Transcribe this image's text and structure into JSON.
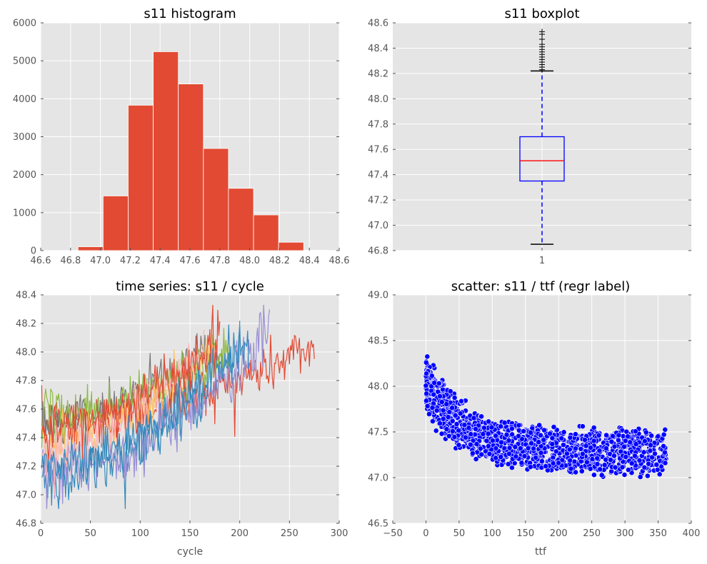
{
  "chart_data": [
    {
      "type": "bar",
      "title": "s11 histogram",
      "xlabel": "",
      "ylabel": "",
      "xlim": [
        46.6,
        48.6
      ],
      "ylim": [
        0,
        6000
      ],
      "xticks": [
        "46.6",
        "46.8",
        "47.0",
        "47.2",
        "47.4",
        "47.6",
        "47.8",
        "48.0",
        "48.2",
        "48.4",
        "48.6"
      ],
      "yticks": [
        "0",
        "1000",
        "2000",
        "3000",
        "4000",
        "5000",
        "6000"
      ],
      "bin_edges": [
        46.85,
        47.018,
        47.186,
        47.354,
        47.522,
        47.69,
        47.858,
        48.026,
        48.194,
        48.362,
        48.53
      ],
      "counts": [
        100,
        1440,
        3830,
        5240,
        4390,
        2690,
        1640,
        940,
        220,
        10
      ],
      "bar_color": "#E24A33",
      "grid": true
    },
    {
      "type": "box",
      "title": "s11 boxplot",
      "xticks": [
        "1"
      ],
      "ylim": [
        46.8,
        48.6
      ],
      "yticks": [
        "46.8",
        "47.0",
        "47.2",
        "47.4",
        "47.6",
        "47.8",
        "48.0",
        "48.2",
        "48.4",
        "48.6"
      ],
      "whisker_low": 46.85,
      "q1": 47.35,
      "median": 47.51,
      "q3": 47.7,
      "whisker_high": 48.22,
      "fliers": [
        48.23,
        48.25,
        48.27,
        48.29,
        48.31,
        48.33,
        48.35,
        48.37,
        48.39,
        48.41,
        48.43,
        48.47,
        48.51,
        48.53
      ],
      "grid": true
    },
    {
      "type": "line",
      "title": "time series: s11 / cycle",
      "xlabel": "cycle",
      "ylabel": "",
      "xlim": [
        0,
        300
      ],
      "ylim": [
        46.8,
        48.4
      ],
      "xticks": [
        "0",
        "50",
        "100",
        "150",
        "200",
        "250",
        "300"
      ],
      "yticks": [
        "46.8",
        "47.0",
        "47.2",
        "47.4",
        "47.6",
        "47.8",
        "48.0",
        "48.2",
        "48.4"
      ],
      "series": [
        {
          "length": 275,
          "start": 47.5,
          "end": 48.05,
          "noise": 0.12,
          "color": "#E24A33"
        },
        {
          "length": 200,
          "start": 47.1,
          "end": 48.05,
          "noise": 0.13,
          "color": "#348ABD"
        },
        {
          "length": 230,
          "start": 47.15,
          "end": 48.15,
          "noise": 0.13,
          "color": "#988ED5"
        },
        {
          "length": 170,
          "start": 47.5,
          "end": 48.05,
          "noise": 0.11,
          "color": "#777777"
        },
        {
          "length": 190,
          "start": 47.55,
          "end": 48.05,
          "noise": 0.11,
          "color": "#8EBA42"
        },
        {
          "length": 175,
          "start": 47.35,
          "end": 48.05,
          "noise": 0.1,
          "color": "#FBC15E"
        },
        {
          "length": 165,
          "start": 47.3,
          "end": 48.05,
          "noise": 0.1,
          "color": "#FFB5B8"
        },
        {
          "length": 210,
          "start": 47.2,
          "end": 48.05,
          "noise": 0.12,
          "color": "#348ABD"
        },
        {
          "length": 180,
          "start": 47.45,
          "end": 48.1,
          "noise": 0.12,
          "color": "#E24A33"
        }
      ],
      "grid": true
    },
    {
      "type": "scatter",
      "title": "scatter: s11 / ttf (regr label)",
      "xlabel": "ttf",
      "ylabel": "",
      "xlim": [
        -50,
        400
      ],
      "ylim": [
        46.5,
        49.0
      ],
      "xticks": [
        "−50",
        "0",
        "50",
        "100",
        "150",
        "200",
        "250",
        "300",
        "350",
        "400"
      ],
      "yticks": [
        "46.5",
        "47.0",
        "47.5",
        "48.0",
        "48.5",
        "49.0"
      ],
      "ttf_max": 362,
      "trend": {
        "asymptote": 47.3,
        "amplitude": 0.72,
        "decay": 45
      },
      "spread": 0.33,
      "point_color": "#0000FF",
      "grid": true
    }
  ]
}
